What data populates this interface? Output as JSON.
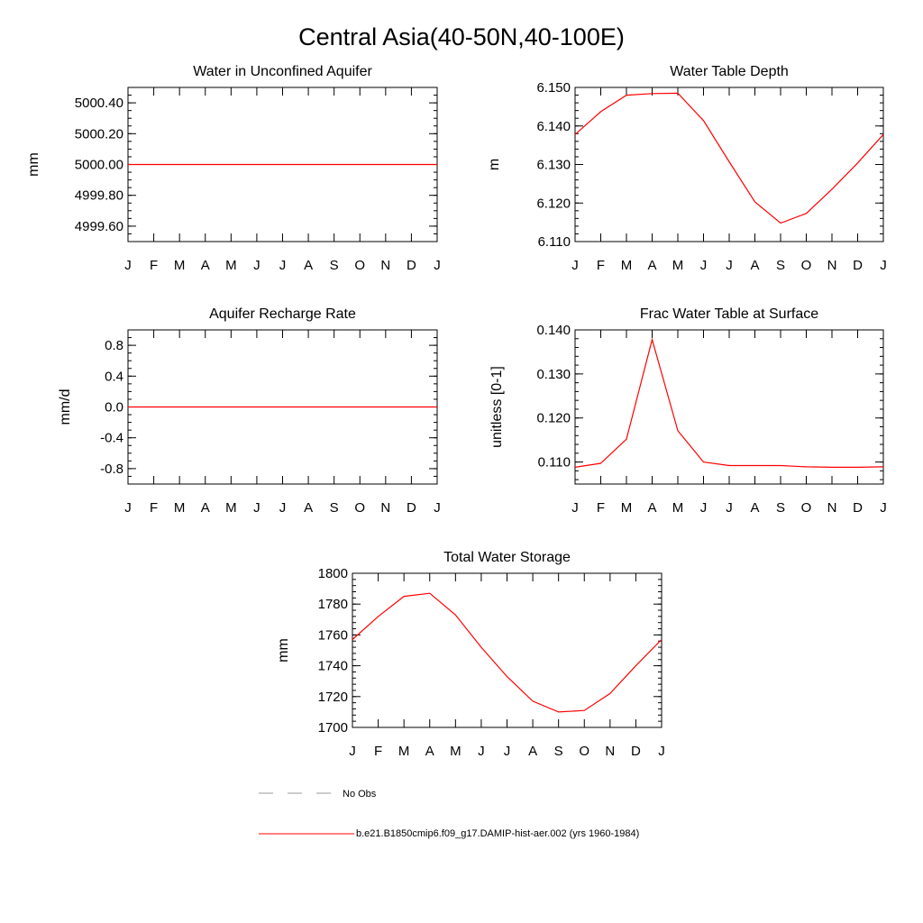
{
  "figure": {
    "title": "Central Asia(40-50N,40-100E)"
  },
  "chart_data": [
    {
      "id": "aquifer",
      "type": "line",
      "title": "Water in Unconfined Aquifer",
      "xlabel": "",
      "ylabel": "mm",
      "categories": [
        "J",
        "F",
        "M",
        "A",
        "M",
        "J",
        "J",
        "A",
        "S",
        "O",
        "N",
        "D",
        "J"
      ],
      "ylim": [
        4999.5,
        5000.5
      ],
      "yticks": [
        {
          "v": 4999.6,
          "label": "4999.60"
        },
        {
          "v": 4999.8,
          "label": "4999.80"
        },
        {
          "v": 5000.0,
          "label": "5000.00"
        },
        {
          "v": 5000.2,
          "label": "5000.20"
        },
        {
          "v": 5000.4,
          "label": "5000.40"
        }
      ],
      "yminor": 0.05,
      "series": [
        {
          "color": "#ff0000",
          "values": [
            5000.0,
            5000.0,
            5000.0,
            5000.0,
            5000.0,
            5000.0,
            5000.0,
            5000.0,
            5000.0,
            5000.0,
            5000.0,
            5000.0,
            5000.0
          ]
        }
      ]
    },
    {
      "id": "wtd",
      "type": "line",
      "title": "Water Table Depth",
      "xlabel": "",
      "ylabel": "m",
      "categories": [
        "J",
        "F",
        "M",
        "A",
        "M",
        "J",
        "J",
        "A",
        "S",
        "O",
        "N",
        "D",
        "J"
      ],
      "ylim": [
        6.11,
        6.15
      ],
      "yticks": [
        {
          "v": 6.11,
          "label": "6.110"
        },
        {
          "v": 6.12,
          "label": "6.120"
        },
        {
          "v": 6.13,
          "label": "6.130"
        },
        {
          "v": 6.14,
          "label": "6.140"
        },
        {
          "v": 6.15,
          "label": "6.150"
        }
      ],
      "yminor": 0.002,
      "series": [
        {
          "color": "#ff0000",
          "values": [
            6.1378,
            6.1437,
            6.148,
            6.1484,
            6.1485,
            6.1414,
            6.1307,
            6.1203,
            6.1148,
            6.1173,
            6.1236,
            6.1304,
            6.1378
          ]
        }
      ]
    },
    {
      "id": "recharge",
      "type": "line",
      "title": "Aquifer Recharge Rate",
      "xlabel": "",
      "ylabel": "mm/d",
      "categories": [
        "J",
        "F",
        "M",
        "A",
        "M",
        "J",
        "J",
        "A",
        "S",
        "O",
        "N",
        "D",
        "J"
      ],
      "ylim": [
        -1.0,
        1.0
      ],
      "yticks": [
        {
          "v": -0.8,
          "label": "-0.8"
        },
        {
          "v": -0.4,
          "label": "-0.4"
        },
        {
          "v": 0.0,
          "label": "0.0"
        },
        {
          "v": 0.4,
          "label": "0.4"
        },
        {
          "v": 0.8,
          "label": "0.8"
        }
      ],
      "yminor": 0.1,
      "series": [
        {
          "color": "#ff0000",
          "values": [
            0,
            0,
            0,
            0,
            0,
            0,
            0,
            0,
            0,
            0,
            0,
            0,
            0
          ]
        }
      ]
    },
    {
      "id": "frac",
      "type": "line",
      "title": "Frac Water Table at Surface",
      "xlabel": "",
      "ylabel": "unitless [0-1]",
      "categories": [
        "J",
        "F",
        "M",
        "A",
        "M",
        "J",
        "J",
        "A",
        "S",
        "O",
        "N",
        "D",
        "J"
      ],
      "ylim": [
        0.105,
        0.14
      ],
      "yticks": [
        {
          "v": 0.11,
          "label": "0.110"
        },
        {
          "v": 0.12,
          "label": "0.120"
        },
        {
          "v": 0.13,
          "label": "0.130"
        },
        {
          "v": 0.14,
          "label": "0.140"
        }
      ],
      "yminor": 0.002,
      "series": [
        {
          "color": "#ff0000",
          "values": [
            0.1088,
            0.1097,
            0.1152,
            0.1378,
            0.1171,
            0.11,
            0.1092,
            0.1092,
            0.1092,
            0.1089,
            0.1088,
            0.1088,
            0.1089
          ]
        }
      ]
    },
    {
      "id": "tws",
      "type": "line",
      "title": "Total Water Storage",
      "xlabel": "",
      "ylabel": "mm",
      "categories": [
        "J",
        "F",
        "M",
        "A",
        "M",
        "J",
        "J",
        "A",
        "S",
        "O",
        "N",
        "D",
        "J"
      ],
      "ylim": [
        1700,
        1800
      ],
      "yticks": [
        {
          "v": 1700,
          "label": "1700"
        },
        {
          "v": 1720,
          "label": "1720"
        },
        {
          "v": 1740,
          "label": "1740"
        },
        {
          "v": 1760,
          "label": "1760"
        },
        {
          "v": 1780,
          "label": "1780"
        },
        {
          "v": 1800,
          "label": "1800"
        }
      ],
      "yminor": 4,
      "series": [
        {
          "color": "#ff0000",
          "values": [
            1757,
            1772,
            1785,
            1787,
            1773,
            1752,
            1733,
            1717,
            1710,
            1711,
            1722,
            1740,
            1757
          ]
        }
      ]
    }
  ],
  "legend": [
    {
      "label": "No Obs",
      "color": "#999999",
      "dash": "dashed"
    },
    {
      "label": "b.e21.B1850cmip6.f09_g17.DAMIP-hist-aer.002 (yrs 1960-1984)",
      "color": "#ff0000",
      "dash": "solid"
    }
  ]
}
